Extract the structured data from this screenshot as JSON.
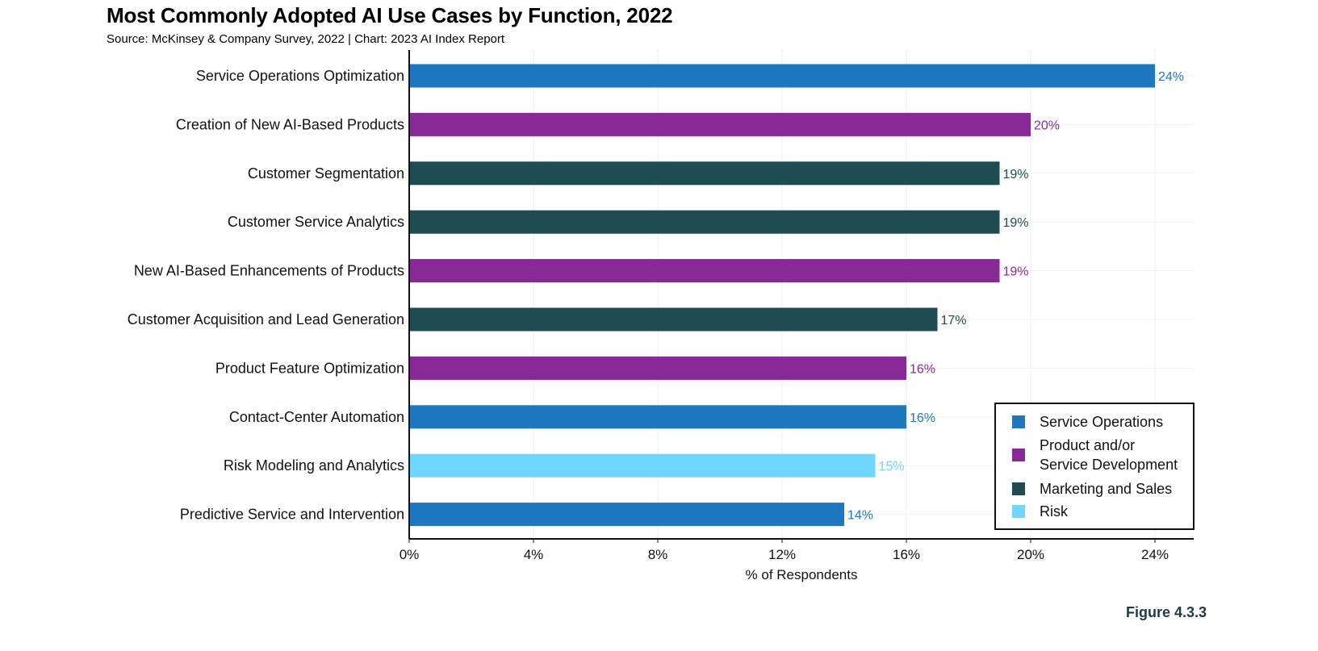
{
  "title": "Most Commonly Adopted AI Use Cases by Function, 2022",
  "subtitle": "Source: McKinsey & Company Survey, 2022 | Chart: 2023 AI Index Report",
  "figure_label": "Figure 4.3.3",
  "colors": {
    "Service Operations": "#1f77be",
    "Product and/or Service Development": "#872a96",
    "Marketing and Sales": "#1f4b53",
    "Risk": "#70d7fc"
  },
  "chart_data": {
    "type": "bar",
    "orientation": "horizontal",
    "title": "Most Commonly Adopted AI Use Cases by Function, 2022",
    "xlabel": "% of Respondents",
    "ylabel": "",
    "xlim": [
      0,
      25
    ],
    "xticks": [
      0,
      4,
      8,
      12,
      16,
      20,
      24
    ],
    "xtick_labels": [
      "0%",
      "4%",
      "8%",
      "12%",
      "16%",
      "20%",
      "24%"
    ],
    "grid": true,
    "legend_position": "bottom-right",
    "legend": [
      {
        "name": "Service Operations",
        "lines": [
          "Service Operations"
        ]
      },
      {
        "name": "Product and/or Service Development",
        "lines": [
          "Product and/or",
          "Service Development"
        ]
      },
      {
        "name": "Marketing and Sales",
        "lines": [
          "Marketing and Sales"
        ]
      },
      {
        "name": "Risk",
        "lines": [
          "Risk"
        ]
      }
    ],
    "bars": [
      {
        "category": "Service Operations Optimization",
        "value": 24,
        "label": "24%",
        "function": "Service Operations"
      },
      {
        "category": "Creation of New AI-Based Products",
        "value": 20,
        "label": "20%",
        "function": "Product and/or Service Development"
      },
      {
        "category": "Customer Segmentation",
        "value": 19,
        "label": "19%",
        "function": "Marketing and Sales"
      },
      {
        "category": "Customer Service Analytics",
        "value": 19,
        "label": "19%",
        "function": "Marketing and Sales"
      },
      {
        "category": "New AI-Based Enhancements of Products",
        "value": 19,
        "label": "19%",
        "function": "Product and/or Service Development"
      },
      {
        "category": "Customer Acquisition and Lead Generation",
        "value": 17,
        "label": "17%",
        "function": "Marketing and Sales"
      },
      {
        "category": "Product Feature Optimization",
        "value": 16,
        "label": "16%",
        "function": "Product and/or Service Development"
      },
      {
        "category": "Contact-Center Automation",
        "value": 16,
        "label": "16%",
        "function": "Service Operations"
      },
      {
        "category": "Risk Modeling and Analytics",
        "value": 15,
        "label": "15%",
        "function": "Risk"
      },
      {
        "category": "Predictive Service and Intervention",
        "value": 14,
        "label": "14%",
        "function": "Service Operations"
      }
    ]
  }
}
